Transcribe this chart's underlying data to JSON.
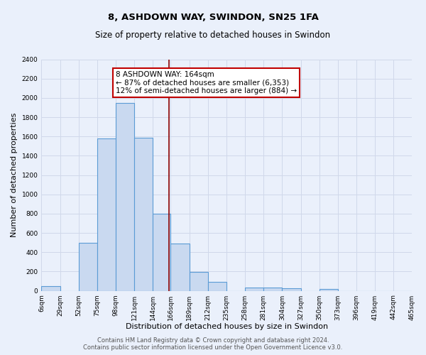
{
  "title": "8, ASHDOWN WAY, SWINDON, SN25 1FA",
  "subtitle": "Size of property relative to detached houses in Swindon",
  "xlabel": "Distribution of detached houses by size in Swindon",
  "ylabel": "Number of detached properties",
  "bins": [
    6,
    29,
    52,
    75,
    98,
    121,
    144,
    166,
    189,
    212,
    235,
    258,
    281,
    304,
    327,
    350,
    373,
    396,
    419,
    442,
    465
  ],
  "counts": [
    50,
    0,
    500,
    1580,
    1950,
    1590,
    800,
    490,
    195,
    90,
    0,
    35,
    35,
    30,
    0,
    20,
    0,
    0,
    0,
    0
  ],
  "bar_color": "#c9d9f0",
  "bar_edge_color": "#5b9bd5",
  "bar_edge_width": 0.8,
  "vline_x": 164,
  "vline_color": "#8b0000",
  "annotation_text": "8 ASHDOWN WAY: 164sqm\n← 87% of detached houses are smaller (6,353)\n12% of semi-detached houses are larger (884) →",
  "annotation_box_color": "#ffffff",
  "annotation_box_edge": "#c00000",
  "ylim": [
    0,
    2400
  ],
  "yticks": [
    0,
    200,
    400,
    600,
    800,
    1000,
    1200,
    1400,
    1600,
    1800,
    2000,
    2200,
    2400
  ],
  "tick_labels": [
    "6sqm",
    "29sqm",
    "52sqm",
    "75sqm",
    "98sqm",
    "121sqm",
    "144sqm",
    "166sqm",
    "189sqm",
    "212sqm",
    "235sqm",
    "258sqm",
    "281sqm",
    "304sqm",
    "327sqm",
    "350sqm",
    "373sqm",
    "396sqm",
    "419sqm",
    "442sqm",
    "465sqm"
  ],
  "footer_text": "Contains HM Land Registry data © Crown copyright and database right 2024.\nContains public sector information licensed under the Open Government Licence v3.0.",
  "background_color": "#eaf0fb",
  "plot_bg_color": "#eaf0fb",
  "grid_color": "#d0d8ea",
  "title_fontsize": 9.5,
  "subtitle_fontsize": 8.5,
  "label_fontsize": 8,
  "tick_fontsize": 6.5,
  "footer_fontsize": 6,
  "annotation_fontsize": 7.5
}
